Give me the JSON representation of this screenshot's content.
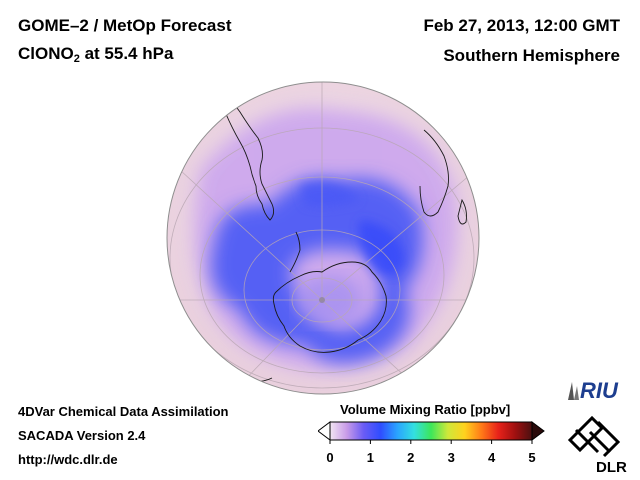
{
  "header": {
    "title_line1": "GOME–2 / MetOp Forecast",
    "title_line2_prefix": "ClONO",
    "title_line2_sub": "2",
    "title_line2_suffix": " at 55.4 hPa",
    "date": "Feb 27, 2013, 12:00 GMT",
    "region": "Southern Hemisphere"
  },
  "footer": {
    "line1": "4DVar Chemical Data Assimilation",
    "line2": "SACADA Version 2.4",
    "line3": "http://wdc.dlr.de"
  },
  "colorbar": {
    "title": "Volume Mixing Ratio [ppbv]",
    "ticks": [
      "0",
      "1",
      "2",
      "3",
      "4",
      "5"
    ],
    "range": [
      0,
      5
    ],
    "colors": [
      "#f3e6f3",
      "#c89be8",
      "#6a5cf5",
      "#2f4dff",
      "#2aa4ff",
      "#33e0e0",
      "#3ce65a",
      "#cfe83a",
      "#ffd21e",
      "#ff7a18",
      "#e8221a",
      "#a01010",
      "#4a1010"
    ]
  },
  "logos": {
    "riu": "RIU",
    "dlr": "DLR"
  },
  "map_colors": {
    "ocean_low": "#f1dbe6",
    "mid": "#b48ff0",
    "high": "#4d5cf6",
    "coast": "#1a1a1a"
  }
}
